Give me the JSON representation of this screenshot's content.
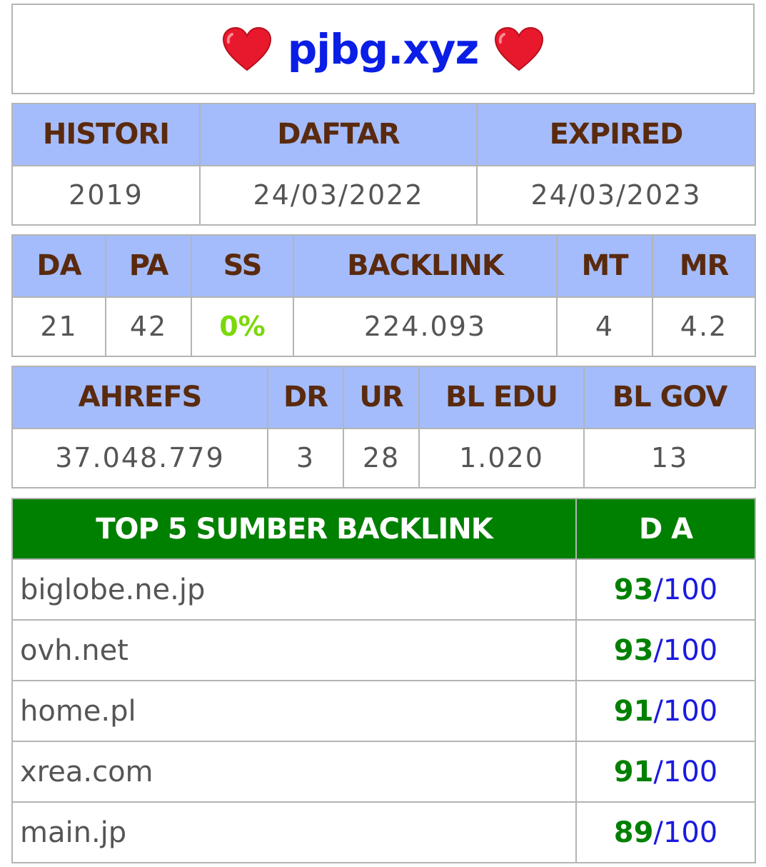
{
  "header": {
    "domain": "pjbg.xyz"
  },
  "registration": {
    "headers": [
      "HISTORI",
      "DAFTAR",
      "EXPIRED"
    ],
    "values": [
      "2019",
      "24/03/2022",
      "24/03/2023"
    ]
  },
  "moz": {
    "headers": [
      "DA",
      "PA",
      "SS",
      "BACKLINK",
      "MT",
      "MR"
    ],
    "values": [
      "21",
      "42",
      "0%",
      "224.093",
      "4",
      "4.2"
    ]
  },
  "ahrefs": {
    "headers": [
      "AHREFS",
      "DR",
      "UR",
      "BL EDU",
      "BL GOV"
    ],
    "values": [
      "37.048.779",
      "3",
      "28",
      "1.020",
      "13"
    ]
  },
  "top_backlinks": {
    "headers": [
      "TOP 5 SUMBER BACKLINK",
      "D A"
    ],
    "rows": [
      {
        "site": "biglobe.ne.jp",
        "score": "93",
        "max": "100"
      },
      {
        "site": "ovh.net",
        "score": "93",
        "max": "100"
      },
      {
        "site": "home.pl",
        "score": "91",
        "max": "100"
      },
      {
        "site": "xrea.com",
        "score": "91",
        "max": "100"
      },
      {
        "site": "main.jp",
        "score": "89",
        "max": "100"
      }
    ]
  },
  "colors": {
    "title": "#0a1ee6",
    "header_bg": "#a4bcfb",
    "header_text": "#5a2a0e",
    "green_header_bg": "#008000",
    "ss_value": "#7bd80a",
    "score": "#008000",
    "max": "#1a1ae0"
  },
  "icons": {
    "title_left": "heart-icon",
    "title_right": "heart-icon"
  }
}
